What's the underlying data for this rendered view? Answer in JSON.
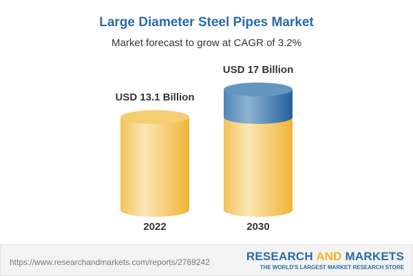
{
  "title": "Large Diameter Steel Pipes Market",
  "subtitle": "Market forecast to grow at CAGR of 3.2%",
  "chart_data": {
    "type": "bar",
    "style": "3d-cylinder",
    "categories": [
      "2022",
      "2030"
    ],
    "values": [
      13.1,
      17
    ],
    "data_labels": [
      "USD 13.1 Billion",
      "USD 17 Billion"
    ],
    "unit": "USD Billion",
    "cagr": "3.2%",
    "colors": {
      "base": "#f2c354",
      "growth": "#3f7bb0"
    }
  },
  "footer": {
    "url": "https://www.researchandmarkets.com/reports/2769242",
    "logo_part1": "RESEARCH ",
    "logo_part2": "AND",
    "logo_part3": " MARKETS",
    "tagline": "THE WORLD'S LARGEST MARKET RESEARCH STORE"
  }
}
